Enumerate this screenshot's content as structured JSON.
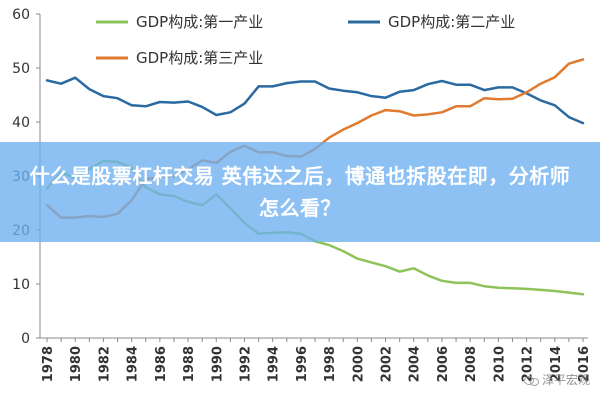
{
  "chart_data": {
    "type": "line",
    "x": [
      1978,
      1979,
      1980,
      1981,
      1982,
      1983,
      1984,
      1985,
      1986,
      1987,
      1988,
      1989,
      1990,
      1991,
      1992,
      1993,
      1994,
      1995,
      1996,
      1997,
      1998,
      1999,
      2000,
      2001,
      2002,
      2003,
      2004,
      2005,
      2006,
      2007,
      2008,
      2009,
      2010,
      2011,
      2012,
      2013,
      2014,
      2015,
      2016
    ],
    "x_tick_labels": [
      "1978",
      "1980",
      "1982",
      "1984",
      "1986",
      "1988",
      "1990",
      "1992",
      "1994",
      "1996",
      "1998",
      "2000",
      "2002",
      "2004",
      "2006",
      "2008",
      "2010",
      "2012",
      "2014",
      "2016"
    ],
    "y_ticks": [
      0,
      10,
      20,
      30,
      40,
      50,
      60
    ],
    "ylim": [
      0,
      60
    ],
    "xlim": [
      1978,
      2016
    ],
    "grid": false,
    "legend_position": "top",
    "series": [
      {
        "name": "GDP构成:第一产业",
        "color": "#8cc45a",
        "values": [
          27.7,
          30.7,
          29.6,
          31.3,
          32.8,
          32.6,
          31.5,
          27.9,
          26.6,
          26.3,
          25.2,
          24.6,
          26.6,
          24.0,
          21.3,
          19.3,
          19.5,
          19.6,
          19.3,
          17.9,
          17.2,
          16.1,
          14.7,
          14.0,
          13.3,
          12.3,
          12.9,
          11.6,
          10.6,
          10.2,
          10.2,
          9.6,
          9.3,
          9.2,
          9.1,
          8.9,
          8.7,
          8.4,
          8.1
        ]
      },
      {
        "name": "GDP构成:第二产业",
        "color": "#2a6aa0",
        "values": [
          47.7,
          47.1,
          48.2,
          46.1,
          44.8,
          44.4,
          43.1,
          42.9,
          43.7,
          43.6,
          43.8,
          42.8,
          41.3,
          41.8,
          43.4,
          46.6,
          46.6,
          47.2,
          47.5,
          47.5,
          46.2,
          45.8,
          45.5,
          44.8,
          44.5,
          45.6,
          45.9,
          47.0,
          47.6,
          46.9,
          46.9,
          45.9,
          46.4,
          46.4,
          45.3,
          44.0,
          43.1,
          40.9,
          39.8
        ]
      },
      {
        "name": "GDP构成:第三产业",
        "color": "#e07a2e",
        "values": [
          24.6,
          22.3,
          22.3,
          22.6,
          22.4,
          23.0,
          25.5,
          29.4,
          29.8,
          30.0,
          31.2,
          32.9,
          32.4,
          34.5,
          35.6,
          34.4,
          34.4,
          33.7,
          33.6,
          35.0,
          37.1,
          38.6,
          39.8,
          41.2,
          42.2,
          42.0,
          41.2,
          41.4,
          41.8,
          42.9,
          42.9,
          44.4,
          44.2,
          44.3,
          45.5,
          47.1,
          48.3,
          50.8,
          51.6
        ]
      }
    ]
  },
  "banner": {
    "text": "什么是股票杠杆交易 英伟达之后，博通也拆股在即，分析师怎么看？"
  },
  "watermark": {
    "text": "泽平宏观"
  }
}
